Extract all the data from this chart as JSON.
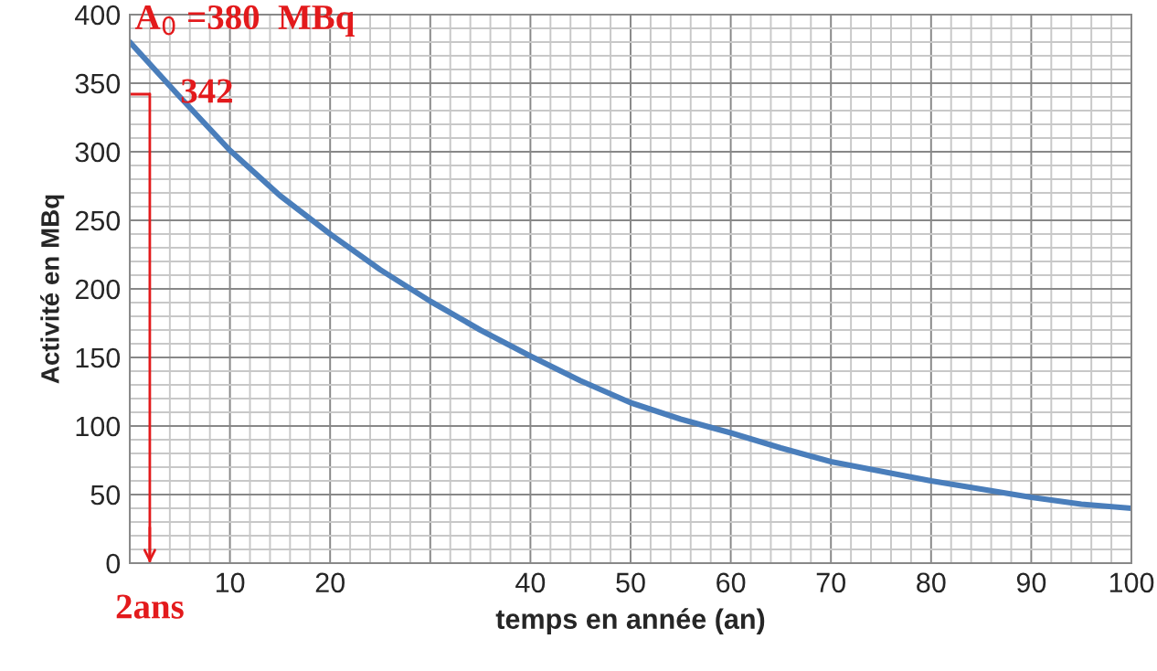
{
  "chart_data": {
    "type": "line",
    "xlabel": "temps en année (an)",
    "ylabel": "Activité en MBq",
    "x": [
      0,
      5,
      10,
      15,
      20,
      25,
      30,
      35,
      40,
      45,
      50,
      55,
      60,
      65,
      70,
      75,
      80,
      85,
      90,
      95,
      100
    ],
    "series": [
      {
        "color": "#4a7ebb",
        "values": [
          380,
          340,
          301,
          268,
          240,
          214,
          191,
          170,
          151,
          133,
          117,
          105,
          95,
          84,
          74,
          67,
          60,
          54,
          48,
          43,
          40
        ]
      },
      {
        "color": "#e31a1c",
        "x": [
          0,
          2
        ],
        "values": [
          342,
          342
        ]
      }
    ],
    "ref_lines": [
      {
        "axis": "x",
        "value": 2,
        "color": "#e31a1c"
      }
    ],
    "xlim": [
      0,
      100
    ],
    "xticks": [
      {
        "value": 0,
        "label": null
      },
      10,
      20,
      {
        "value": 30,
        "label": null
      },
      40,
      50,
      60,
      70,
      80,
      90,
      100
    ],
    "ylim": [
      0,
      400
    ],
    "yticks": [
      0,
      50,
      100,
      150,
      200,
      250,
      300,
      350,
      400
    ],
    "grid": true,
    "marker": "none",
    "line_style": "solid",
    "annotations": [
      {
        "text": "A$_{0}$ =380  MBq",
        "x": 0,
        "y": 380
      },
      "342",
      "2ans"
    ]
  }
}
